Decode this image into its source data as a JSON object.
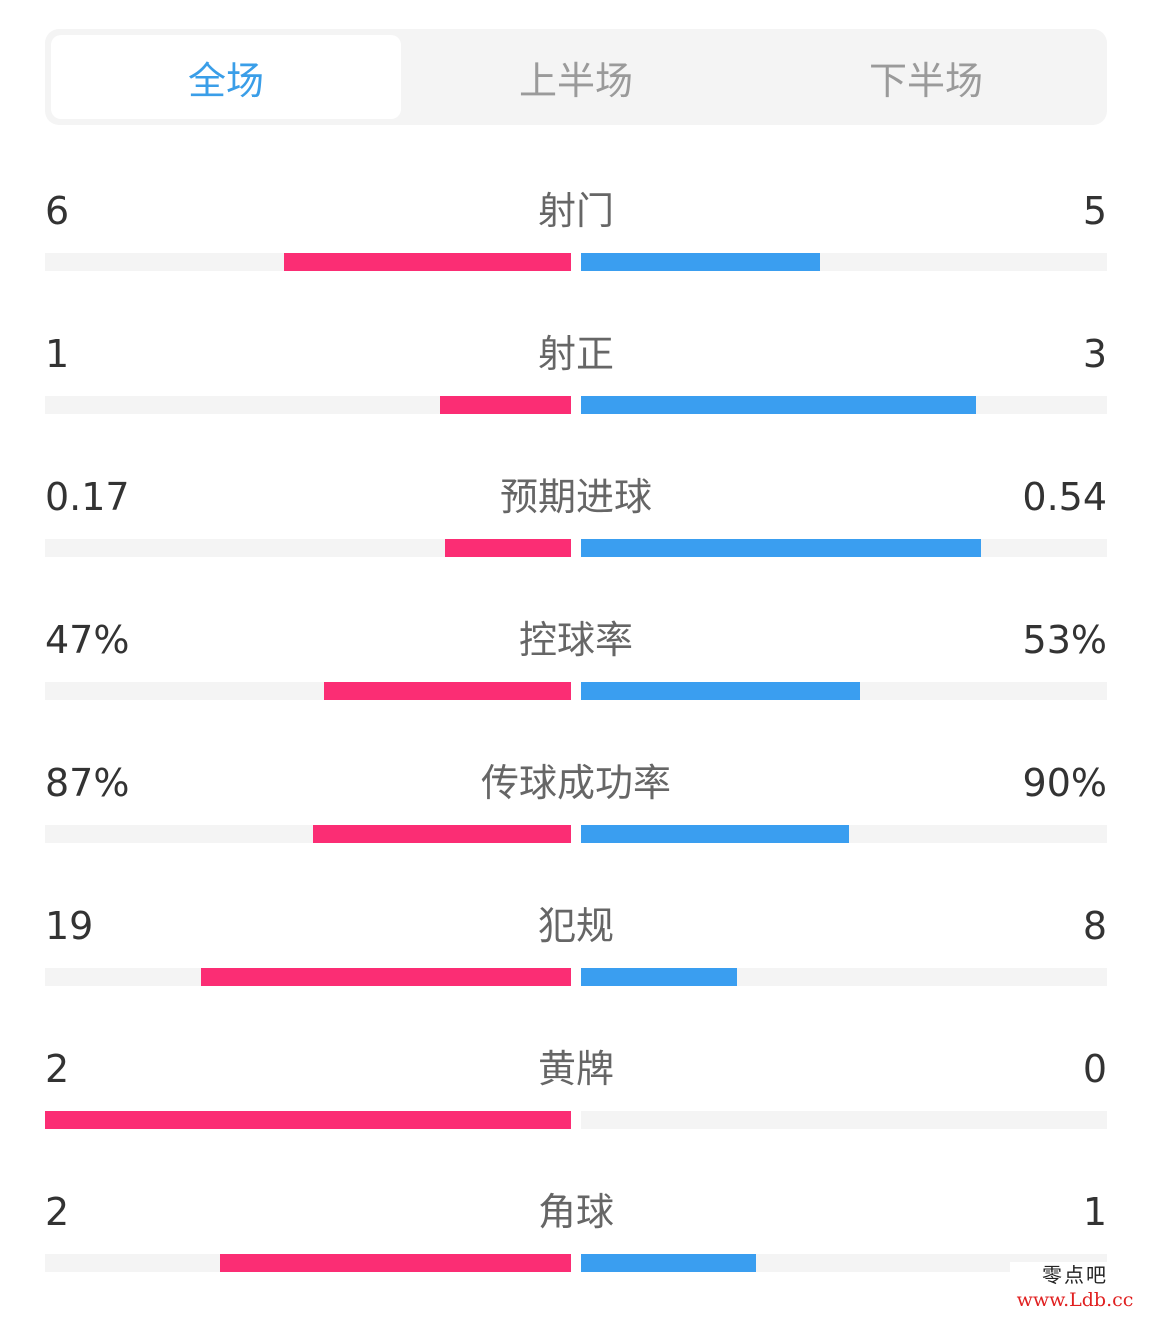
{
  "tabs": [
    {
      "label": "全场",
      "active": true
    },
    {
      "label": "上半场",
      "active": false
    },
    {
      "label": "下半场",
      "active": false
    }
  ],
  "colors": {
    "home": "#fb2d74",
    "away": "#3a9ef0",
    "active_tab": "#3a9ee8",
    "track": "#f4f4f4"
  },
  "stats": [
    {
      "label": "射门",
      "home": "6",
      "away": "5",
      "home_ratio": 0.545,
      "away_ratio": 0.455
    },
    {
      "label": "射正",
      "home": "1",
      "away": "3",
      "home_ratio": 0.25,
      "away_ratio": 0.75
    },
    {
      "label": "预期进球",
      "home": "0.17",
      "away": "0.54",
      "home_ratio": 0.239,
      "away_ratio": 0.761
    },
    {
      "label": "控球率",
      "home": "47%",
      "away": "53%",
      "home_ratio": 0.47,
      "away_ratio": 0.53
    },
    {
      "label": "传球成功率",
      "home": "87%",
      "away": "90%",
      "home_ratio": 0.491,
      "away_ratio": 0.509
    },
    {
      "label": "犯规",
      "home": "19",
      "away": "8",
      "home_ratio": 0.704,
      "away_ratio": 0.296
    },
    {
      "label": "黄牌",
      "home": "2",
      "away": "0",
      "home_ratio": 1.0,
      "away_ratio": 0.0
    },
    {
      "label": "角球",
      "home": "2",
      "away": "1",
      "home_ratio": 0.667,
      "away_ratio": 0.333
    }
  ],
  "watermark": {
    "text_cn": "零点吧",
    "url": "www.Ldb.cc"
  }
}
